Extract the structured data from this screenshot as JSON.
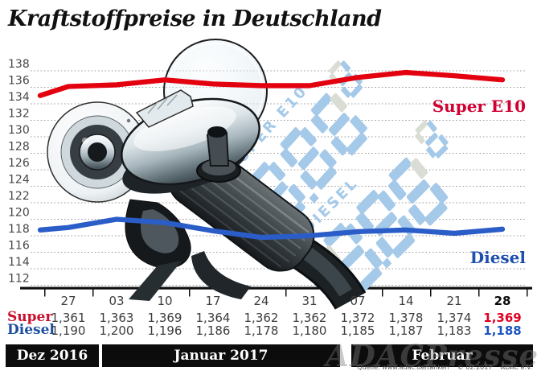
{
  "title": "Kraftstoffpreise in Deutschland",
  "watermark": "ADACPresse",
  "source_note": "Quelle: www.adac.de/tanken    © 02.2017    ADAC e.V.",
  "chart_data": {
    "type": "line",
    "title": "Kraftstoffpreise in Deutschland",
    "categories": [
      "27",
      "03",
      "10",
      "17",
      "24",
      "31",
      "07",
      "14",
      "21",
      "28"
    ],
    "series": [
      {
        "name": "Super E10",
        "legend_label": "Super E10",
        "color": "#e3000f",
        "label_color": "#d10032",
        "values": [
          136.1,
          136.3,
          136.9,
          136.4,
          136.2,
          136.2,
          137.2,
          137.8,
          137.4,
          136.9
        ],
        "lead_in": 135.0
      },
      {
        "name": "Diesel",
        "legend_label": "Diesel",
        "color": "#2b5dc8",
        "label_color": "#1e4fad",
        "values": [
          119.0,
          120.0,
          119.6,
          118.6,
          117.8,
          118.0,
          118.5,
          118.7,
          118.3,
          118.8
        ],
        "lead_in": 118.7
      }
    ],
    "ylim": [
      112,
      138
    ],
    "ytick_step": 2,
    "grid": true,
    "legend_position": "inline-right"
  },
  "table": {
    "dates": [
      "27",
      "03",
      "10",
      "17",
      "24",
      "31",
      "07",
      "14",
      "21",
      "28"
    ],
    "rows": [
      {
        "label": "Super",
        "color": "#c8102e",
        "bold_color": "#e00020",
        "values": [
          "1,361",
          "1,363",
          "1,369",
          "1,364",
          "1,362",
          "1,362",
          "1,372",
          "1,378",
          "1,374",
          "1,369"
        ]
      },
      {
        "label": "Diesel",
        "color": "#1d4fa1",
        "bold_color": "#1d55c0",
        "values": [
          "1,190",
          "1,200",
          "1,196",
          "1,186",
          "1,178",
          "1,180",
          "1,185",
          "1,187",
          "1,183",
          "1,188"
        ]
      }
    ],
    "periods": [
      {
        "label": "Dez 2016"
      },
      {
        "label": "Januar 2017"
      },
      {
        "label": "Februar"
      }
    ]
  },
  "pump_display": {
    "rows": [
      {
        "label": "SUPER E10",
        "digits": "8.88",
        "small_digit": "8"
      },
      {
        "label": "DIESEL",
        "digits": "8.88",
        "small_digit": "8"
      }
    ]
  },
  "colors": {
    "seg_blue": "#a5c9e8",
    "seg_gray": "#d9ddd4",
    "grid": "#9c9c9c",
    "axis_label": "#484848",
    "bar_bg": "#0c0c0c"
  }
}
